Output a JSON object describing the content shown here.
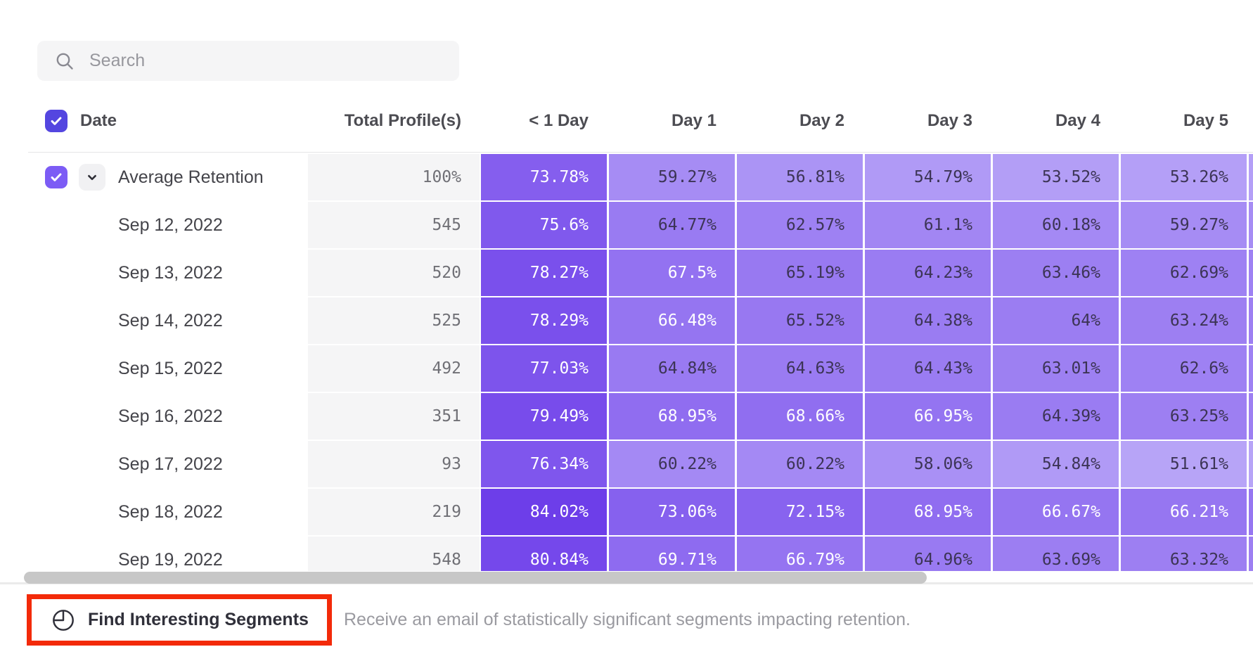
{
  "search": {
    "placeholder": "Search"
  },
  "table": {
    "columns": {
      "date": "Date",
      "total": "Total Profile(s)",
      "days": [
        "< 1 Day",
        "Day 1",
        "Day 2",
        "Day 3",
        "Day 4",
        "Day 5"
      ]
    },
    "rows": [
      {
        "label": "Average Retention",
        "checked": true,
        "expandable": true,
        "total": "100%",
        "values": [
          73.78,
          59.27,
          56.81,
          54.79,
          53.52,
          53.26
        ]
      },
      {
        "label": "Sep 12, 2022",
        "total": "545",
        "values": [
          75.6,
          64.77,
          62.57,
          61.1,
          60.18,
          59.27
        ]
      },
      {
        "label": "Sep 13, 2022",
        "total": "520",
        "values": [
          78.27,
          67.5,
          65.19,
          64.23,
          63.46,
          62.69
        ]
      },
      {
        "label": "Sep 14, 2022",
        "total": "525",
        "values": [
          78.29,
          66.48,
          65.52,
          64.38,
          64,
          63.24
        ]
      },
      {
        "label": "Sep 15, 2022",
        "total": "492",
        "values": [
          77.03,
          64.84,
          64.63,
          64.43,
          63.01,
          62.6
        ]
      },
      {
        "label": "Sep 16, 2022",
        "total": "351",
        "values": [
          79.49,
          68.95,
          68.66,
          66.95,
          64.39,
          63.25
        ]
      },
      {
        "label": "Sep 17, 2022",
        "total": "93",
        "values": [
          76.34,
          60.22,
          60.22,
          58.06,
          54.84,
          51.61
        ]
      },
      {
        "label": "Sep 18, 2022",
        "total": "219",
        "values": [
          84.02,
          73.06,
          72.15,
          68.95,
          66.67,
          66.21
        ]
      },
      {
        "label": "Sep 19, 2022",
        "total": "548",
        "values": [
          80.84,
          69.71,
          66.79,
          64.96,
          63.69,
          63.32
        ]
      }
    ]
  },
  "footer": {
    "button_label": "Find Interesting Segments",
    "description": "Receive an email of statistically significant segments impacting retention."
  },
  "colors": {
    "header_checkbox": "#5446e0",
    "row_checkbox": "#7c5cf5",
    "cell_scale_light": "#bba9f8",
    "cell_scale_dark": "#6b3be9",
    "cell_text_dark": "#3c3455",
    "cell_text_light": "#ffffff",
    "highlight_red": "#f32a09"
  }
}
